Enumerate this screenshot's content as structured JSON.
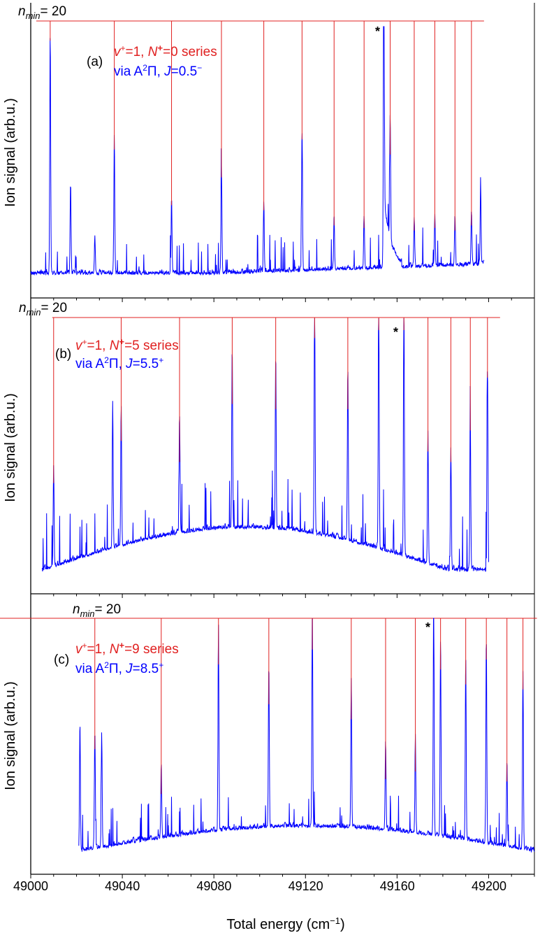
{
  "chart_data": {
    "type": "line",
    "xlabel_main": "Total energy (cm",
    "xlabel_sup": "−1",
    "xlabel_tail": ")",
    "ylabel": "Ion signal (arb.u.)",
    "xlim": [
      49000,
      49220
    ],
    "x_ticks": [
      49000,
      49040,
      49080,
      49120,
      49160,
      49200
    ],
    "x_tick_labels": [
      "49000",
      "49040",
      "49080",
      "49120",
      "49160",
      "49200"
    ],
    "colors": {
      "series": "#0000ff",
      "markers": "#e02020",
      "axes": "#000000"
    },
    "panels": [
      {
        "label": "(a)",
        "nmin_sym": "n",
        "nmin_sub": "min",
        "nmin_value": "= 20",
        "series_label": {
          "v": "v",
          "v_sup": "+",
          "v_eq": "=1, ",
          "N": "N",
          "N_sup": "+",
          "N_eq": "=0 series"
        },
        "via_label": {
          "pre": "via A",
          "sup": "2",
          "mid": "Π, ",
          "J": "J",
          "J_eq": "=0.5",
          "J_sup": "−"
        },
        "star_label": "*",
        "star_x": 49153,
        "data_range": [
          49000,
          49198
        ],
        "markers": [
          49008.5,
          49036.5,
          49061.5,
          49083.3,
          49101.8,
          49118.5,
          49132.5,
          49145.6,
          49157,
          49167.5,
          49176.5,
          49185.3,
          49192.5
        ],
        "peaks": [
          [
            49008.5,
            0.95
          ],
          [
            49036.5,
            0.52
          ],
          [
            49061.5,
            0.3
          ],
          [
            49083.3,
            0.41
          ],
          [
            49101.8,
            0.28
          ],
          [
            49118.5,
            0.56
          ],
          [
            49132.5,
            0.22
          ],
          [
            49145.6,
            0.21
          ],
          [
            49154.2,
            1.0
          ],
          [
            49157,
            0.5
          ],
          [
            49167.5,
            0.2
          ],
          [
            49176.5,
            0.21
          ],
          [
            49185.3,
            0.2
          ],
          [
            49192.5,
            0.22
          ],
          [
            49017.4,
            0.36
          ],
          [
            49028,
            0.15
          ],
          [
            49196.5,
            0.3
          ]
        ]
      },
      {
        "label": "(b)",
        "nmin_sym": "n",
        "nmin_sub": "min",
        "nmin_value": "= 20",
        "series_label": {
          "v": "v",
          "v_sup": "+",
          "v_eq": "=1, ",
          "N": "N",
          "N_sup": "+",
          "N_eq": "=5 series"
        },
        "via_label": {
          "pre": "via A",
          "sup": "2",
          "mid": "Π, ",
          "J": "J",
          "J_eq": "=5.5",
          "J_sup": "+"
        },
        "star_label": "*",
        "star_x": 49160,
        "data_range": [
          49005,
          49200
        ],
        "markers": [
          49010,
          49039.5,
          49065,
          49088,
          49107,
          49124,
          49138.5,
          49152,
          49163,
          49173.5,
          49183.5,
          49192,
          49199.5
        ],
        "peaks": [
          [
            49010,
            0.38
          ],
          [
            49035.8,
            0.56
          ],
          [
            49039.5,
            0.54
          ],
          [
            49065,
            0.46
          ],
          [
            49088,
            0.68
          ],
          [
            49107,
            0.66
          ],
          [
            49124,
            0.93
          ],
          [
            49138.5,
            0.66
          ],
          [
            49152,
            1.0
          ],
          [
            49163,
            1.0
          ],
          [
            49173.5,
            0.5
          ],
          [
            49183.5,
            0.46
          ],
          [
            49192,
            0.58
          ],
          [
            49199.5,
            0.78
          ]
        ]
      },
      {
        "label": "(c)",
        "nmin_sym": "n",
        "nmin_sub": "min",
        "nmin_value": "= 20",
        "series_label": {
          "v": "v",
          "v_sup": "+",
          "v_eq": "=1, ",
          "N": "N",
          "N_sup": "+",
          "N_eq": "=9 series"
        },
        "via_label": {
          "pre": "via A",
          "sup": "2",
          "mid": "Π, ",
          "J": "J",
          "J_eq": "=8.5",
          "J_sup": "+"
        },
        "star_label": "*",
        "star_x": 49172.8,
        "data_range": [
          49021,
          49220
        ],
        "markers": [
          49028,
          49057,
          49082,
          49104,
          49123,
          49140,
          49155,
          49168,
          49179,
          49190,
          49199,
          49208,
          49215
        ],
        "peaks": [
          [
            49021.5,
            0.52
          ],
          [
            49028,
            0.48
          ],
          [
            49031,
            0.46
          ],
          [
            49057,
            0.3
          ],
          [
            49082,
            0.82
          ],
          [
            49104,
            0.66
          ],
          [
            49123,
            0.88
          ],
          [
            49140,
            0.6
          ],
          [
            49155,
            0.36
          ],
          [
            49168,
            0.39
          ],
          [
            49176,
            1.0
          ],
          [
            49179,
            0.8
          ],
          [
            49190,
            0.74
          ],
          [
            49199,
            0.84
          ],
          [
            49208,
            0.35
          ],
          [
            49215,
            0.72
          ]
        ]
      }
    ]
  }
}
